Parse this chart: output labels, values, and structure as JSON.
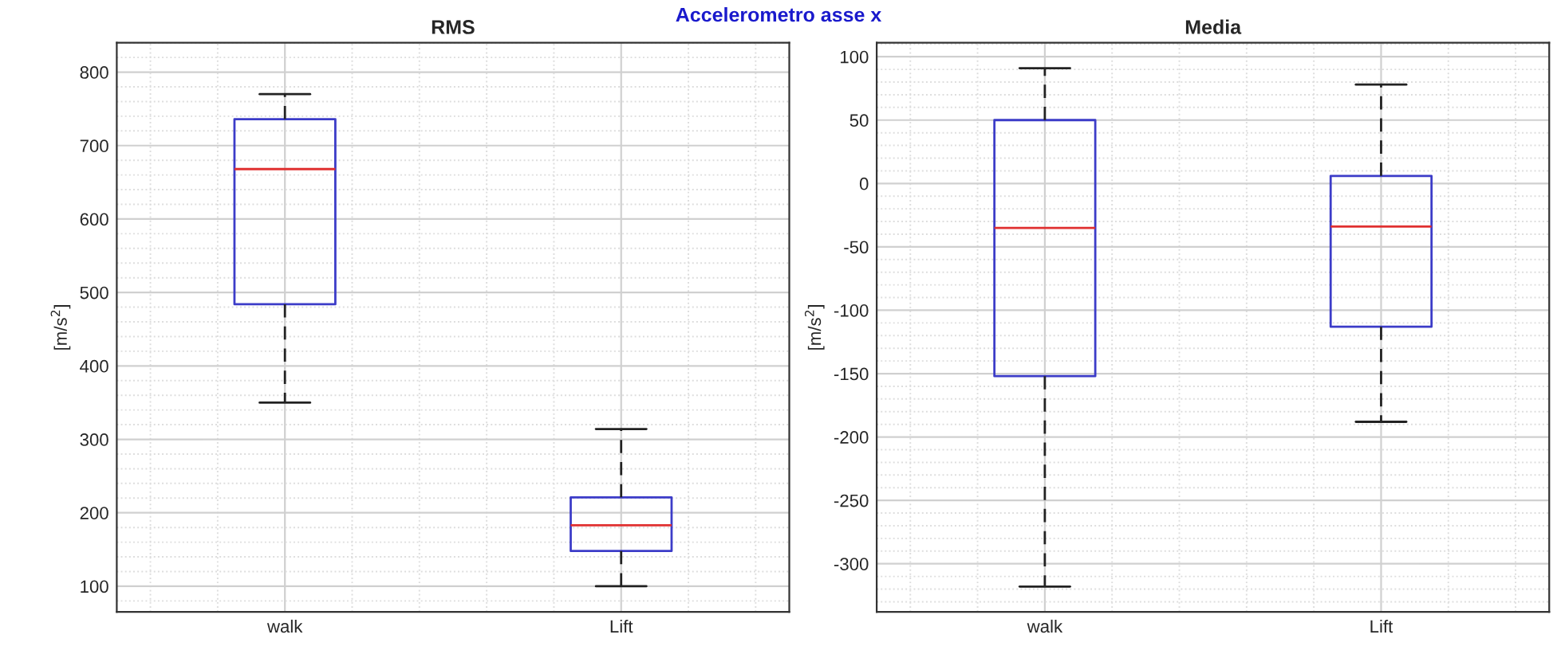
{
  "chart_data": [
    {
      "type": "box",
      "title": "RMS",
      "ylabel": "[m/s$^{2}$]",
      "categories": [
        "walk",
        "Lift"
      ],
      "ylim": [
        65,
        840
      ],
      "yticks": [
        100,
        200,
        300,
        400,
        500,
        600,
        700,
        800
      ],
      "grid": true,
      "annotations": [
        "Accelerometro asse x"
      ],
      "series": [
        {
          "color": "#3c3cc8",
          "boxes": [
            {
              "low": 350,
              "q1": 484,
              "median": 668,
              "q3": 736,
              "high": 770
            },
            {
              "low": 100,
              "q1": 148,
              "median": 183,
              "q3": 221,
              "high": 314
            }
          ]
        }
      ]
    },
    {
      "type": "box",
      "title": "Media",
      "ylabel": "[m/s$^{2}$]",
      "categories": [
        "walk",
        "Lift"
      ],
      "ylim": [
        -338,
        111
      ],
      "yticks": [
        -300,
        -250,
        -200,
        -150,
        -100,
        -50,
        0,
        50,
        100
      ],
      "grid": true,
      "series": [
        {
          "color": "#3c3cc8",
          "boxes": [
            {
              "low": -318,
              "q1": -152,
              "median": -35,
              "q3": 50,
              "high": 91
            },
            {
              "low": -188,
              "q1": -113,
              "median": -34,
              "q3": 6,
              "high": 78
            }
          ]
        }
      ]
    }
  ]
}
